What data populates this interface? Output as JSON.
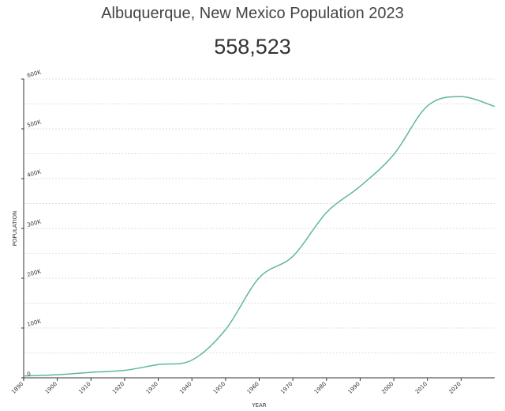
{
  "page": {
    "title": "Albuquerque, New Mexico Population 2023",
    "headline": "558,523"
  },
  "colors": {
    "line": "#5fb89b",
    "grid": "#d4d4d4",
    "axis": "#333333",
    "text": "#444444"
  },
  "chart_data": {
    "type": "line",
    "title": "Albuquerque, New Mexico Population 2023",
    "xlabel": "YEAR",
    "ylabel": "POPULATION",
    "xlim": [
      1890,
      2030
    ],
    "ylim": [
      0,
      600000
    ],
    "grid": true,
    "legend": "none",
    "x_ticks": [
      {
        "value": 1890,
        "label": "1890"
      },
      {
        "value": 1900,
        "label": "1900"
      },
      {
        "value": 1910,
        "label": "1910"
      },
      {
        "value": 1920,
        "label": "1920"
      },
      {
        "value": 1930,
        "label": "1930"
      },
      {
        "value": 1940,
        "label": "1940"
      },
      {
        "value": 1950,
        "label": "1950"
      },
      {
        "value": 1960,
        "label": "1960"
      },
      {
        "value": 1970,
        "label": "1970"
      },
      {
        "value": 1980,
        "label": "1980"
      },
      {
        "value": 1990,
        "label": "1990"
      },
      {
        "value": 2000,
        "label": "2000"
      },
      {
        "value": 2010,
        "label": "2010"
      },
      {
        "value": 2020,
        "label": "2020"
      }
    ],
    "y_ticks": [
      {
        "value": 0,
        "label": "0"
      },
      {
        "value": 100000,
        "label": "100K"
      },
      {
        "value": 200000,
        "label": "200K"
      },
      {
        "value": 300000,
        "label": "300K"
      },
      {
        "value": 400000,
        "label": "400K"
      },
      {
        "value": 500000,
        "label": "500K"
      },
      {
        "value": 600000,
        "label": "600K"
      }
    ],
    "y_minor_grid": [
      50000,
      150000,
      250000,
      350000,
      450000,
      550000
    ],
    "series": [
      {
        "x": [
          1890,
          1900,
          1910,
          1920,
          1930,
          1940,
          1950,
          1960,
          1970,
          1980,
          1990,
          2000,
          2010,
          2020,
          2030
        ],
        "y": [
          3800,
          6200,
          11000,
          15000,
          26600,
          35500,
          96800,
          201000,
          244000,
          332000,
          384700,
          448600,
          545900,
          564600,
          545000
        ]
      }
    ]
  }
}
